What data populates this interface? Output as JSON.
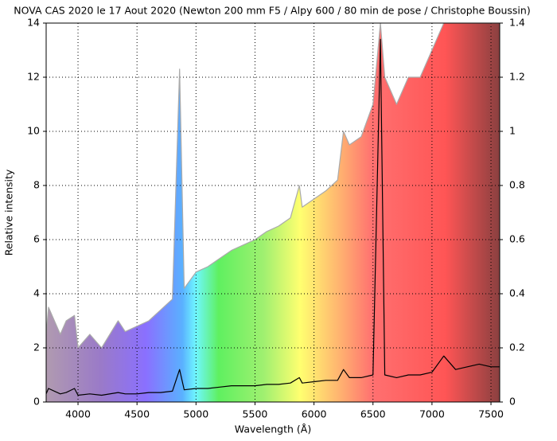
{
  "chart_data": {
    "type": "line",
    "title": "NOVA CAS 2020 le 17 Aout 2020 (Newton 200 mm F5 / Alpy 600 / 80 min de pose / Christophe Boussin)",
    "x_label": "Wavelength (Å)",
    "y_label": "Relative intensity",
    "x": [
      3730,
      3750,
      3800,
      3850,
      3900,
      3970,
      4000,
      4100,
      4200,
      4340,
      4400,
      4500,
      4600,
      4700,
      4800,
      4861,
      4900,
      5000,
      5100,
      5200,
      5300,
      5400,
      5500,
      5600,
      5700,
      5800,
      5876,
      5900,
      6000,
      6100,
      6200,
      6250,
      6300,
      6400,
      6500,
      6563,
      6600,
      6700,
      6800,
      6900,
      7000,
      7100,
      7200,
      7300,
      7400,
      7500,
      7574
    ],
    "series": [
      {
        "color": "#aaaaaa",
        "fill": "rainbow",
        "values": [
          2.5,
          3.5,
          3.0,
          2.5,
          3.0,
          3.2,
          2.0,
          2.5,
          2.0,
          3.0,
          2.6,
          2.8,
          3.0,
          3.4,
          3.8,
          12.3,
          4.2,
          4.8,
          5.0,
          5.3,
          5.6,
          5.8,
          6.0,
          6.3,
          6.5,
          6.8,
          8.0,
          7.2,
          7.5,
          7.8,
          8.2,
          10,
          9.5,
          9.8,
          11,
          14,
          12,
          11,
          12,
          12,
          13,
          14,
          14,
          14,
          14,
          14,
          14
        ]
      },
      {
        "color": "#000000",
        "values": [
          0.3,
          0.5,
          0.4,
          0.3,
          0.35,
          0.5,
          0.25,
          0.3,
          0.25,
          0.35,
          0.3,
          0.3,
          0.35,
          0.35,
          0.4,
          1.2,
          0.45,
          0.5,
          0.5,
          0.55,
          0.6,
          0.6,
          0.6,
          0.65,
          0.65,
          0.7,
          0.9,
          0.7,
          0.75,
          0.8,
          0.8,
          1.2,
          0.9,
          0.9,
          1.0,
          13.4,
          1.0,
          0.9,
          1.0,
          1.0,
          1.1,
          1.7,
          1.2,
          1.3,
          1.4,
          1.3,
          1.3
        ]
      }
    ],
    "xlim": [
      3730,
      7574
    ],
    "xticks": [
      4000,
      4500,
      5000,
      5500,
      6000,
      6500,
      7000,
      7500
    ],
    "ylim": [
      0,
      14
    ],
    "yticks": [
      0,
      2,
      4,
      6,
      8,
      10,
      12,
      14
    ],
    "y2lim": [
      0,
      1.4
    ],
    "y2ticks": [
      0,
      0.2,
      0.4,
      0.6,
      0.8,
      1,
      1.2,
      1.4
    ],
    "grid": true
  }
}
